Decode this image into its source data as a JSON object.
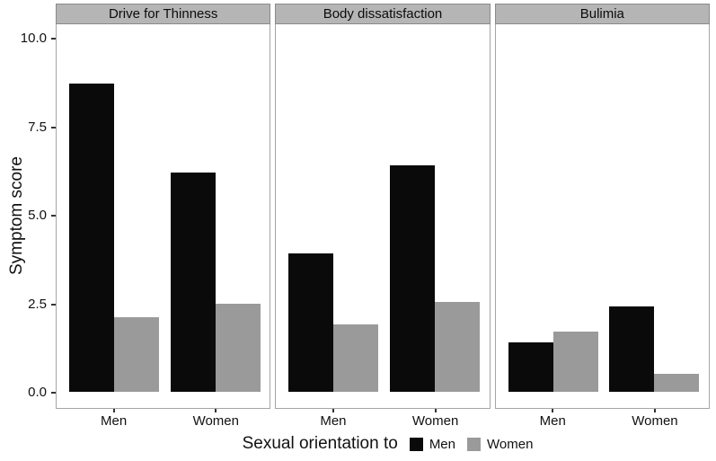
{
  "chart_data": {
    "type": "bar",
    "title": "",
    "ylabel": "Symptom score",
    "xlabel": "",
    "ylim": [
      0,
      10.6
    ],
    "grid": false,
    "legend_position": "bottom",
    "legend_title": "Sexual orientation to",
    "legend": [
      {
        "label": "Men",
        "color": "#0a0a0a"
      },
      {
        "label": "Women",
        "color": "#9a9a9a"
      }
    ],
    "yticks": [
      {
        "value": 10.0,
        "label": "10.0"
      },
      {
        "value": 7.5,
        "label": "7.5"
      },
      {
        "value": 5.0,
        "label": "5.0"
      },
      {
        "value": 2.5,
        "label": "2.5"
      },
      {
        "value": 0.0,
        "label": "0.0"
      }
    ],
    "categories": [
      "Men",
      "Women"
    ],
    "facets": [
      {
        "title": "Drive for Thinness",
        "groups": [
          {
            "category": "Men",
            "values": [
              8.7,
              2.1
            ]
          },
          {
            "category": "Women",
            "values": [
              6.2,
              2.5
            ]
          }
        ]
      },
      {
        "title": "Body dissatisfaction",
        "groups": [
          {
            "category": "Men",
            "values": [
              3.9,
              1.9
            ]
          },
          {
            "category": "Women",
            "values": [
              6.4,
              2.55
            ]
          }
        ]
      },
      {
        "title": "Bulimia",
        "groups": [
          {
            "category": "Men",
            "values": [
              1.4,
              1.7
            ]
          },
          {
            "category": "Women",
            "values": [
              2.4,
              0.5
            ]
          }
        ]
      }
    ],
    "colors": {
      "strip_bg": "#b5b5b5",
      "strip_border": "#8a8a8a",
      "panel_border": "#a5a5a5",
      "tick": "#333333",
      "text": "#111111"
    }
  }
}
